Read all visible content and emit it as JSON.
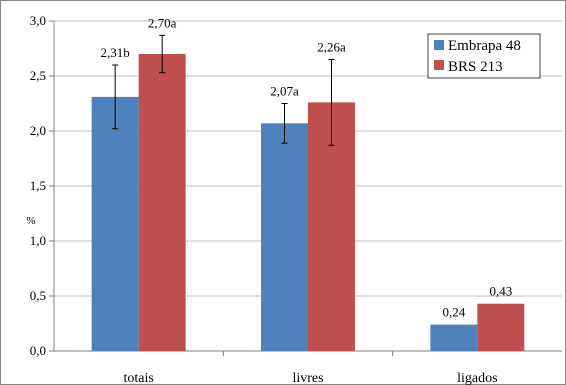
{
  "chart_data": {
    "type": "bar",
    "categories": [
      "totais",
      "livres",
      "ligados"
    ],
    "series": [
      {
        "name": "Embrapa 48",
        "color": "#4F81BD",
        "values": [
          2.31,
          2.07,
          0.24
        ],
        "error": [
          0.29,
          0.18,
          null
        ],
        "labels": [
          "2,31b",
          "2,07a",
          "0,24"
        ]
      },
      {
        "name": "BRS 213",
        "color": "#C0504D",
        "values": [
          2.7,
          2.26,
          0.43
        ],
        "error": [
          0.17,
          0.39,
          null
        ],
        "labels": [
          "2,70a",
          "2,26a",
          "0,43"
        ]
      }
    ],
    "ylabel": "%",
    "ylim": [
      0,
      3.0
    ],
    "yticks": [
      0,
      0.5,
      1.0,
      1.5,
      2.0,
      2.5,
      3.0
    ],
    "ytick_labels": [
      "0,0",
      "0,5",
      "1,0",
      "1,5",
      "2,0",
      "2,5",
      "3,0"
    ],
    "grid": true,
    "legend_position": "top-right"
  }
}
